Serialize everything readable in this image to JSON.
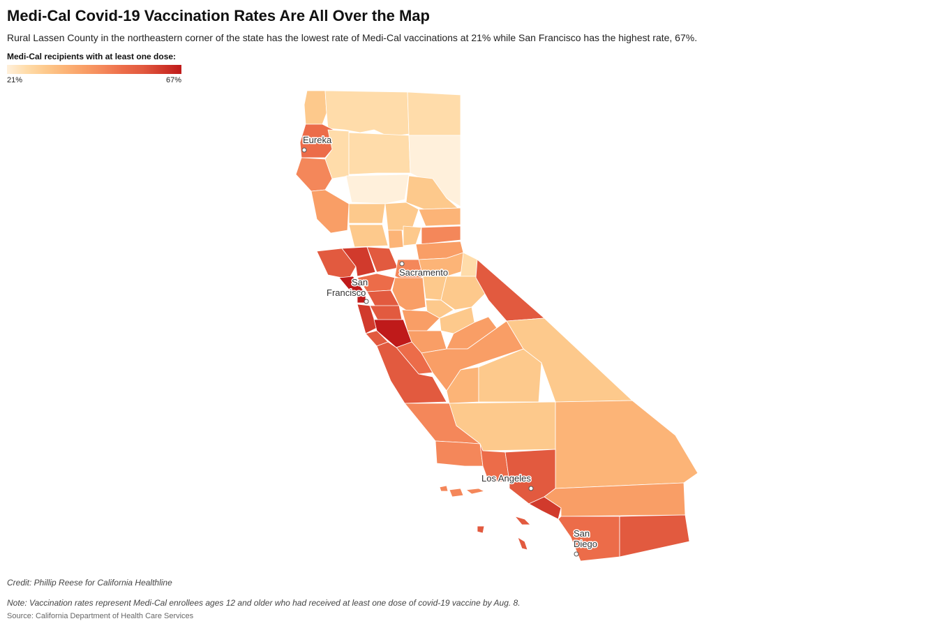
{
  "title": "Medi-Cal Covid-19 Vaccination Rates Are All Over the Map",
  "subtitle": "Rural Lassen County in the northeastern corner of the state has the lowest rate of Medi-Cal vaccinations at 21% while San Francisco has the highest rate, 67%.",
  "legend": {
    "title": "Medi-Cal recipients with at least one dose:",
    "min_label": "21%",
    "max_label": "67%",
    "min_color": "#fff0db",
    "max_color": "#bf1a1a"
  },
  "cities": {
    "eureka": "Eureka",
    "sacramento": "Sacramento",
    "san_francisco_line1": "San",
    "san_francisco_line2": "Francisco",
    "los_angeles": "Los Angeles",
    "san_diego_line1": "San",
    "san_diego_line2": "Diego"
  },
  "colors": {
    "c1": "#fff0db",
    "c2": "#ffdcaa",
    "c3": "#fdc98c",
    "c4": "#fcb477",
    "c5": "#f99e66",
    "c6": "#f4875a",
    "c7": "#ec6c49",
    "c8": "#e25a3f",
    "c9": "#d13a2c",
    "c10": "#bf1a1a"
  },
  "footer": {
    "credit": "Credit: Phillip Reese for California Healthline",
    "note": "Note: Vaccination rates represent Medi-Cal enrollees ages 12 and older who had received at least one dose of covid-19 vaccine by Aug. 8.",
    "source": "Source: California Department of Health Care Services"
  }
}
